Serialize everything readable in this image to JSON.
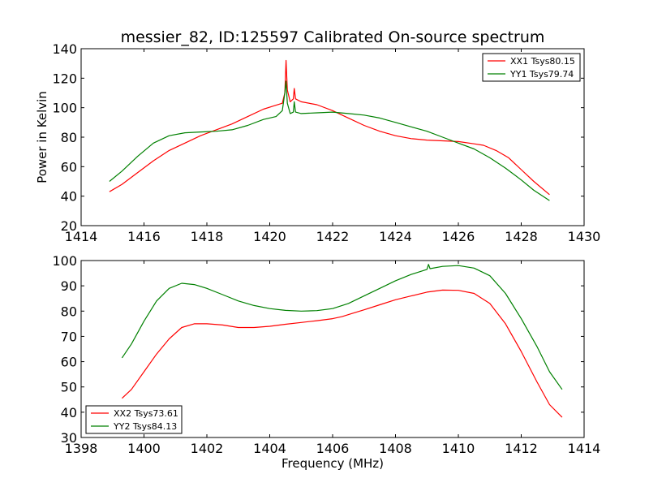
{
  "figure_title": "messier_82, ID:125597 Calibrated On-source spectrum",
  "colors": {
    "xx": "#ff0000",
    "yy": "#008000"
  },
  "chart_data": [
    {
      "type": "line",
      "title": "messier_82, ID:125597 Calibrated On-source spectrum",
      "xlabel": "",
      "ylabel": "Power in Kelvin",
      "xlim": [
        1414,
        1430
      ],
      "ylim": [
        20,
        140
      ],
      "xticks": [
        1414,
        1416,
        1418,
        1420,
        1422,
        1424,
        1426,
        1428,
        1430
      ],
      "yticks": [
        20,
        40,
        60,
        80,
        100,
        120,
        140
      ],
      "legend_position": "upper right",
      "series": [
        {
          "name": "XX1 Tsys80.15",
          "color": "#ff0000",
          "points": [
            [
              1414.9,
              43
            ],
            [
              1415.3,
              48
            ],
            [
              1415.8,
              56
            ],
            [
              1416.3,
              64
            ],
            [
              1416.8,
              71
            ],
            [
              1417.3,
              76
            ],
            [
              1417.8,
              81
            ],
            [
              1418.3,
              85
            ],
            [
              1418.8,
              89
            ],
            [
              1419.3,
              94
            ],
            [
              1419.8,
              99
            ],
            [
              1420.1,
              101
            ],
            [
              1420.4,
              103
            ],
            [
              1420.48,
              110
            ],
            [
              1420.52,
              132
            ],
            [
              1420.56,
              112
            ],
            [
              1420.65,
              104
            ],
            [
              1420.75,
              106
            ],
            [
              1420.78,
              113
            ],
            [
              1420.82,
              106
            ],
            [
              1421.0,
              104
            ],
            [
              1421.5,
              102
            ],
            [
              1422.0,
              98
            ],
            [
              1422.5,
              93
            ],
            [
              1423.0,
              88
            ],
            [
              1423.5,
              84
            ],
            [
              1424.0,
              81
            ],
            [
              1424.5,
              79
            ],
            [
              1425.0,
              78
            ],
            [
              1425.5,
              77.5
            ],
            [
              1426.0,
              77
            ],
            [
              1426.5,
              75.5
            ],
            [
              1426.8,
              74.5
            ],
            [
              1427.2,
              71
            ],
            [
              1427.6,
              66
            ],
            [
              1428.0,
              58
            ],
            [
              1428.4,
              50
            ],
            [
              1428.9,
              41
            ]
          ]
        },
        {
          "name": "YY1 Tsys79.74",
          "color": "#008000",
          "points": [
            [
              1414.9,
              50
            ],
            [
              1415.3,
              57
            ],
            [
              1415.8,
              67
            ],
            [
              1416.3,
              76
            ],
            [
              1416.8,
              81
            ],
            [
              1417.3,
              83
            ],
            [
              1417.8,
              83.5
            ],
            [
              1418.3,
              84
            ],
            [
              1418.8,
              85
            ],
            [
              1419.3,
              88
            ],
            [
              1419.8,
              92
            ],
            [
              1420.2,
              94
            ],
            [
              1420.4,
              98
            ],
            [
              1420.48,
              110
            ],
            [
              1420.52,
              118
            ],
            [
              1420.56,
              103
            ],
            [
              1420.65,
              96
            ],
            [
              1420.75,
              97
            ],
            [
              1420.78,
              104
            ],
            [
              1420.82,
              97
            ],
            [
              1421.0,
              96
            ],
            [
              1421.5,
              96.5
            ],
            [
              1422.0,
              97
            ],
            [
              1422.5,
              96
            ],
            [
              1423.0,
              95
            ],
            [
              1423.5,
              93
            ],
            [
              1424.0,
              90
            ],
            [
              1424.5,
              87
            ],
            [
              1425.0,
              84
            ],
            [
              1425.5,
              80
            ],
            [
              1426.0,
              76
            ],
            [
              1426.5,
              72
            ],
            [
              1427.0,
              66
            ],
            [
              1427.5,
              59
            ],
            [
              1428.0,
              51
            ],
            [
              1428.4,
              44
            ],
            [
              1428.9,
              37
            ]
          ]
        }
      ]
    },
    {
      "type": "line",
      "title": "",
      "xlabel": "Frequency (MHz)",
      "ylabel": "",
      "xlim": [
        1398,
        1414
      ],
      "ylim": [
        30,
        100
      ],
      "xticks": [
        1398,
        1400,
        1402,
        1404,
        1406,
        1408,
        1410,
        1412,
        1414
      ],
      "yticks": [
        30,
        40,
        50,
        60,
        70,
        80,
        90,
        100
      ],
      "legend_position": "lower left",
      "series": [
        {
          "name": "XX2 Tsys73.61",
          "color": "#ff0000",
          "points": [
            [
              1399.3,
              45.5
            ],
            [
              1399.6,
              49
            ],
            [
              1400.0,
              56
            ],
            [
              1400.4,
              63
            ],
            [
              1400.8,
              69
            ],
            [
              1401.2,
              73.5
            ],
            [
              1401.6,
              75
            ],
            [
              1402.0,
              75
            ],
            [
              1402.5,
              74.5
            ],
            [
              1403.0,
              73.5
            ],
            [
              1403.5,
              73.5
            ],
            [
              1404.0,
              74
            ],
            [
              1404.5,
              74.8
            ],
            [
              1405.0,
              75.5
            ],
            [
              1405.5,
              76.2
            ],
            [
              1406.0,
              77
            ],
            [
              1406.3,
              77.8
            ],
            [
              1406.6,
              79
            ],
            [
              1407.0,
              80.5
            ],
            [
              1407.5,
              82.5
            ],
            [
              1408.0,
              84.5
            ],
            [
              1408.5,
              86
            ],
            [
              1409.0,
              87.5
            ],
            [
              1409.5,
              88.3
            ],
            [
              1410.0,
              88.2
            ],
            [
              1410.5,
              87
            ],
            [
              1411.0,
              83
            ],
            [
              1411.5,
              75
            ],
            [
              1412.0,
              64
            ],
            [
              1412.5,
              52
            ],
            [
              1412.9,
              43
            ],
            [
              1413.3,
              38
            ]
          ]
        },
        {
          "name": "YY2 Tsys84.13",
          "color": "#008000",
          "points": [
            [
              1399.3,
              61.5
            ],
            [
              1399.6,
              67
            ],
            [
              1400.0,
              76
            ],
            [
              1400.4,
              84
            ],
            [
              1400.8,
              89
            ],
            [
              1401.2,
              91
            ],
            [
              1401.6,
              90.5
            ],
            [
              1402.0,
              89
            ],
            [
              1402.5,
              86.5
            ],
            [
              1403.0,
              84
            ],
            [
              1403.5,
              82.2
            ],
            [
              1404.0,
              81
            ],
            [
              1404.5,
              80.3
            ],
            [
              1405.0,
              80
            ],
            [
              1405.5,
              80.2
            ],
            [
              1406.0,
              81
            ],
            [
              1406.5,
              83
            ],
            [
              1407.0,
              86
            ],
            [
              1407.5,
              89
            ],
            [
              1408.0,
              92
            ],
            [
              1408.5,
              94.5
            ],
            [
              1409.0,
              96.5
            ],
            [
              1409.05,
              98.5
            ],
            [
              1409.1,
              96.8
            ],
            [
              1409.5,
              97.7
            ],
            [
              1410.0,
              98
            ],
            [
              1410.5,
              97
            ],
            [
              1411.0,
              94
            ],
            [
              1411.5,
              87
            ],
            [
              1412.0,
              77
            ],
            [
              1412.5,
              66
            ],
            [
              1412.9,
              56
            ],
            [
              1413.3,
              49
            ]
          ]
        }
      ]
    }
  ]
}
